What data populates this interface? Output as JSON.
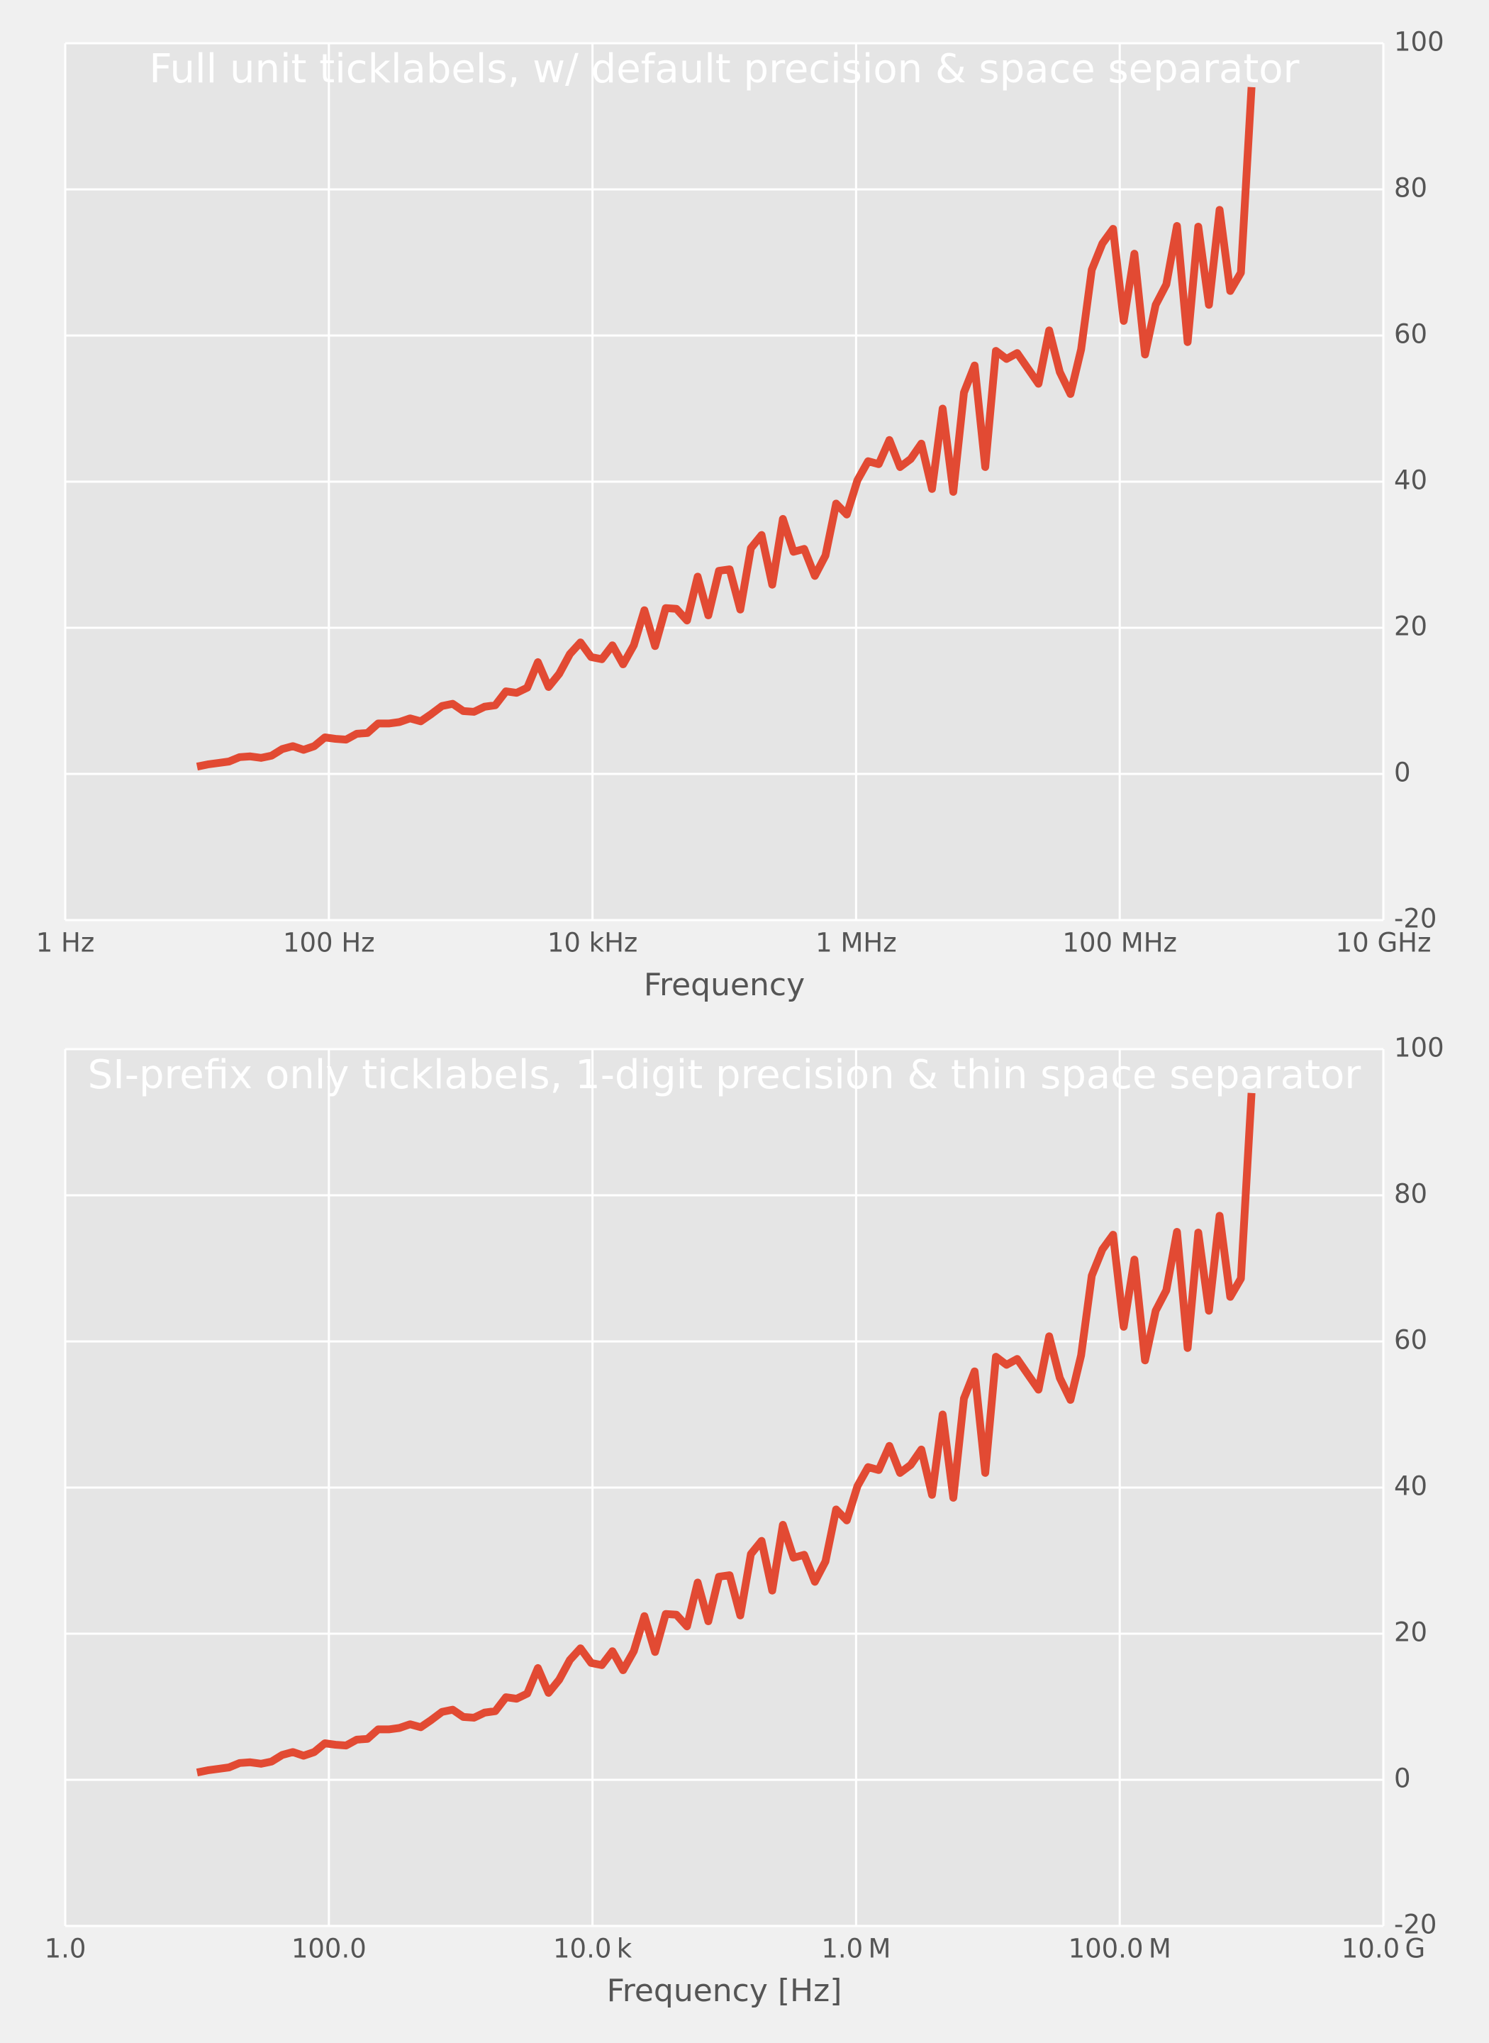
{
  "chart_data": [
    {
      "type": "line",
      "title": "Full unit ticklabels, w/ default precision & space separator",
      "xlabel": "Frequency",
      "xscale": "log",
      "grid": true,
      "color": "#e24a33",
      "xlim": [
        1,
        10000000000
      ],
      "xticks": [
        {
          "value": 1,
          "label": "1 Hz"
        },
        {
          "value": 100,
          "label": "100 Hz"
        },
        {
          "value": 10000,
          "label": "10 kHz"
        },
        {
          "value": 1000000,
          "label": "1 MHz"
        },
        {
          "value": 100000000,
          "label": "100 MHz"
        },
        {
          "value": 10000000000,
          "label": "10 GHz"
        }
      ],
      "ylim": [
        -20,
        100
      ],
      "yticks": [
        -20,
        0,
        20,
        40,
        60,
        80,
        100
      ],
      "x": [
        10,
        12.05,
        14.51,
        17.48,
        21.05,
        25.35,
        30.54,
        36.78,
        44.31,
        53.37,
        64.28,
        77.43,
        93.26,
        112.3,
        135.3,
        163.0,
        196.3,
        236.4,
        284.8,
        343.0,
        413.2,
        497.7,
        599.5,
        722.1,
        869.7,
        1048,
        1262,
        1520,
        1831,
        2205,
        2656,
        3199,
        3854,
        4642,
        5591,
        6734,
        8111,
        9770,
        11770,
        14170,
        17070,
        20570,
        24770,
        29840,
        35940,
        43290,
        52140,
        62800,
        75650,
        91120,
        109800,
        132200,
        159200,
        191800,
        231000,
        278300,
        335200,
        403700,
        486300,
        585700,
        705500,
        849800,
        1024000,
        1233000,
        1485000,
        1789000,
        2154000,
        2595000,
        3126000,
        3765000,
        4535000,
        5462000,
        6579000,
        7925000,
        9545000,
        11500000,
        13850000,
        16680000,
        20090000,
        24200000,
        29150000,
        35110000,
        42290000,
        50940000,
        61360000,
        73910000,
        89020000,
        107200000,
        129200000,
        155600000,
        187400000,
        225700000,
        271900000,
        327500000,
        394400000,
        475100000,
        572200000,
        689300000,
        830200000,
        1000000000
      ],
      "values": [
        1.0,
        1.3,
        1.5,
        1.7,
        2.3,
        2.4,
        2.2,
        2.5,
        3.4,
        3.8,
        3.3,
        3.8,
        5.0,
        4.8,
        4.7,
        5.5,
        5.6,
        6.9,
        6.9,
        7.1,
        7.6,
        7.2,
        8.2,
        9.3,
        9.6,
        8.6,
        8.5,
        9.2,
        9.4,
        11.3,
        11.1,
        11.8,
        15.3,
        11.9,
        13.7,
        16.4,
        18.0,
        16.0,
        15.7,
        17.6,
        15.0,
        17.6,
        22.4,
        17.5,
        22.7,
        22.6,
        21.0,
        27.0,
        21.7,
        27.8,
        28.0,
        22.5,
        30.9,
        32.7,
        25.9,
        34.9,
        30.4,
        30.8,
        27.1,
        29.9,
        37.0,
        35.5,
        40.2,
        42.8,
        42.4,
        45.7,
        42.0,
        43.1,
        45.2,
        39.0,
        50.0,
        38.6,
        52.2,
        55.9,
        42.0,
        57.9,
        56.8,
        57.6,
        55.5,
        53.4,
        60.7,
        55.0,
        52.0,
        58.1,
        69.0,
        72.6,
        74.6,
        62.0,
        71.2,
        57.4,
        64.2,
        67.0,
        75.0,
        59.1,
        74.9,
        64.2,
        77.2,
        66.1,
        68.6,
        94.0
      ]
    },
    {
      "type": "line",
      "title": "SI-prefix only ticklabels, 1-digit precision & thin space separator",
      "xlabel": "Frequency [Hz]",
      "xscale": "log",
      "grid": true,
      "color": "#e24a33",
      "xlim": [
        1,
        10000000000
      ],
      "xticks": [
        {
          "value": 1,
          "label": "1.0"
        },
        {
          "value": 100,
          "label": "100.0"
        },
        {
          "value": 10000,
          "label": "10.0 k"
        },
        {
          "value": 1000000,
          "label": "1.0 M"
        },
        {
          "value": 100000000,
          "label": "100.0 M"
        },
        {
          "value": 10000000000,
          "label": "10.0 G"
        }
      ],
      "ylim": [
        -20,
        100
      ],
      "yticks": [
        -20,
        0,
        20,
        40,
        60,
        80,
        100
      ],
      "x": [
        10,
        12.05,
        14.51,
        17.48,
        21.05,
        25.35,
        30.54,
        36.78,
        44.31,
        53.37,
        64.28,
        77.43,
        93.26,
        112.3,
        135.3,
        163.0,
        196.3,
        236.4,
        284.8,
        343.0,
        413.2,
        497.7,
        599.5,
        722.1,
        869.7,
        1048,
        1262,
        1520,
        1831,
        2205,
        2656,
        3199,
        3854,
        4642,
        5591,
        6734,
        8111,
        9770,
        11770,
        14170,
        17070,
        20570,
        24770,
        29840,
        35940,
        43290,
        52140,
        62800,
        75650,
        91120,
        109800,
        132200,
        159200,
        191800,
        231000,
        278300,
        335200,
        403700,
        486300,
        585700,
        705500,
        849800,
        1024000,
        1233000,
        1485000,
        1789000,
        2154000,
        2595000,
        3126000,
        3765000,
        4535000,
        5462000,
        6579000,
        7925000,
        9545000,
        11500000,
        13850000,
        16680000,
        20090000,
        24200000,
        29150000,
        35110000,
        42290000,
        50940000,
        61360000,
        73910000,
        89020000,
        107200000,
        129200000,
        155600000,
        187400000,
        225700000,
        271900000,
        327500000,
        394400000,
        475100000,
        572200000,
        689300000,
        830200000,
        1000000000
      ],
      "values": [
        1.0,
        1.3,
        1.5,
        1.7,
        2.3,
        2.4,
        2.2,
        2.5,
        3.4,
        3.8,
        3.3,
        3.8,
        5.0,
        4.8,
        4.7,
        5.5,
        5.6,
        6.9,
        6.9,
        7.1,
        7.6,
        7.2,
        8.2,
        9.3,
        9.6,
        8.6,
        8.5,
        9.2,
        9.4,
        11.3,
        11.1,
        11.8,
        15.3,
        11.9,
        13.7,
        16.4,
        18.0,
        16.0,
        15.7,
        17.6,
        15.0,
        17.6,
        22.4,
        17.5,
        22.7,
        22.6,
        21.0,
        27.0,
        21.7,
        27.8,
        28.0,
        22.5,
        30.9,
        32.7,
        25.9,
        34.9,
        30.4,
        30.8,
        27.1,
        29.9,
        37.0,
        35.5,
        40.2,
        42.8,
        42.4,
        45.7,
        42.0,
        43.1,
        45.2,
        39.0,
        50.0,
        38.6,
        52.2,
        55.9,
        42.0,
        57.9,
        56.8,
        57.6,
        55.5,
        53.4,
        60.7,
        55.0,
        52.0,
        58.1,
        69.0,
        72.6,
        74.6,
        62.0,
        71.2,
        57.4,
        64.2,
        67.0,
        75.0,
        59.1,
        74.9,
        64.2,
        77.2,
        66.1,
        68.6,
        94.0
      ]
    }
  ]
}
